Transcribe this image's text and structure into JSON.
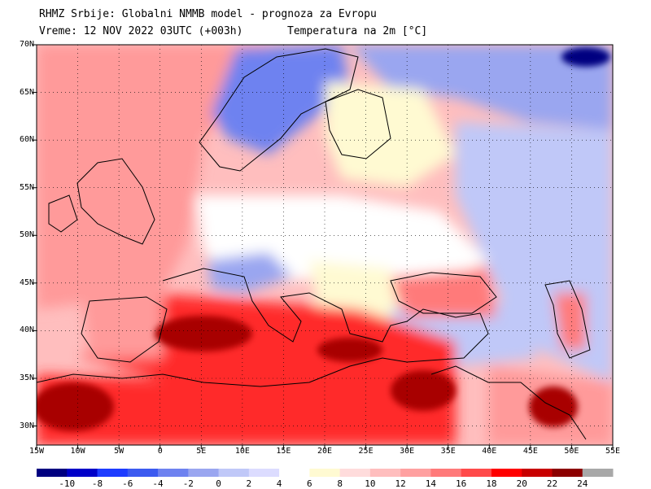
{
  "header": {
    "line1": "RHMZ Srbije: Globalni NMMB model - prognoza za Evropu",
    "line2_left": "Vreme: 12 NOV 2022 03UTC (+003h)",
    "line2_right": "Temperatura na 2m [°C]"
  },
  "lat_labels": [
    "70N",
    "65N",
    "60N",
    "55N",
    "50N",
    "45N",
    "40N",
    "35N",
    "30N"
  ],
  "lon_labels": [
    "15W",
    "10W",
    "5W",
    "0",
    "5E",
    "10E",
    "15E",
    "20E",
    "25E",
    "30E",
    "35E",
    "40E",
    "45E",
    "50E",
    "55E"
  ],
  "colorbar": {
    "labels": [
      "-10",
      "-8",
      "-6",
      "-4",
      "-2",
      "0",
      "2",
      "4",
      "6",
      "8",
      "10",
      "12",
      "14",
      "16",
      "18",
      "20",
      "22",
      "24"
    ],
    "colors": [
      "#000080",
      "#0000c8",
      "#1e3cff",
      "#3c5af0",
      "#6e82f0",
      "#9aa6f0",
      "#c0c8f8",
      "#dcdcff",
      "#ffffff",
      "#fffad2",
      "#ffdcdc",
      "#ffbebe",
      "#ffa0a0",
      "#ff7a7a",
      "#ff4a4a",
      "#ff0000",
      "#c80000",
      "#8c0000",
      "#a8a8a8"
    ]
  },
  "map": {
    "lon_range": [
      -15,
      55
    ],
    "lat_range": [
      28,
      70
    ],
    "colors": {
      "sea": "#ffbebe",
      "land_west": "#ff9a9a",
      "mediterranean_sea": "#ff2a2a",
      "hot_core": "#a80000",
      "north_cold": "#6e82f0",
      "north_deep": "#000080",
      "central_cool": "#ffffff",
      "east_cool": "#c0c8f8",
      "arctic_cool": "#9aa6f0",
      "black_sea": "#ff7a7a",
      "neutral_yellow": "#fffad2",
      "coast": "#000000",
      "mountain_gray": "#a8a8a8"
    }
  }
}
